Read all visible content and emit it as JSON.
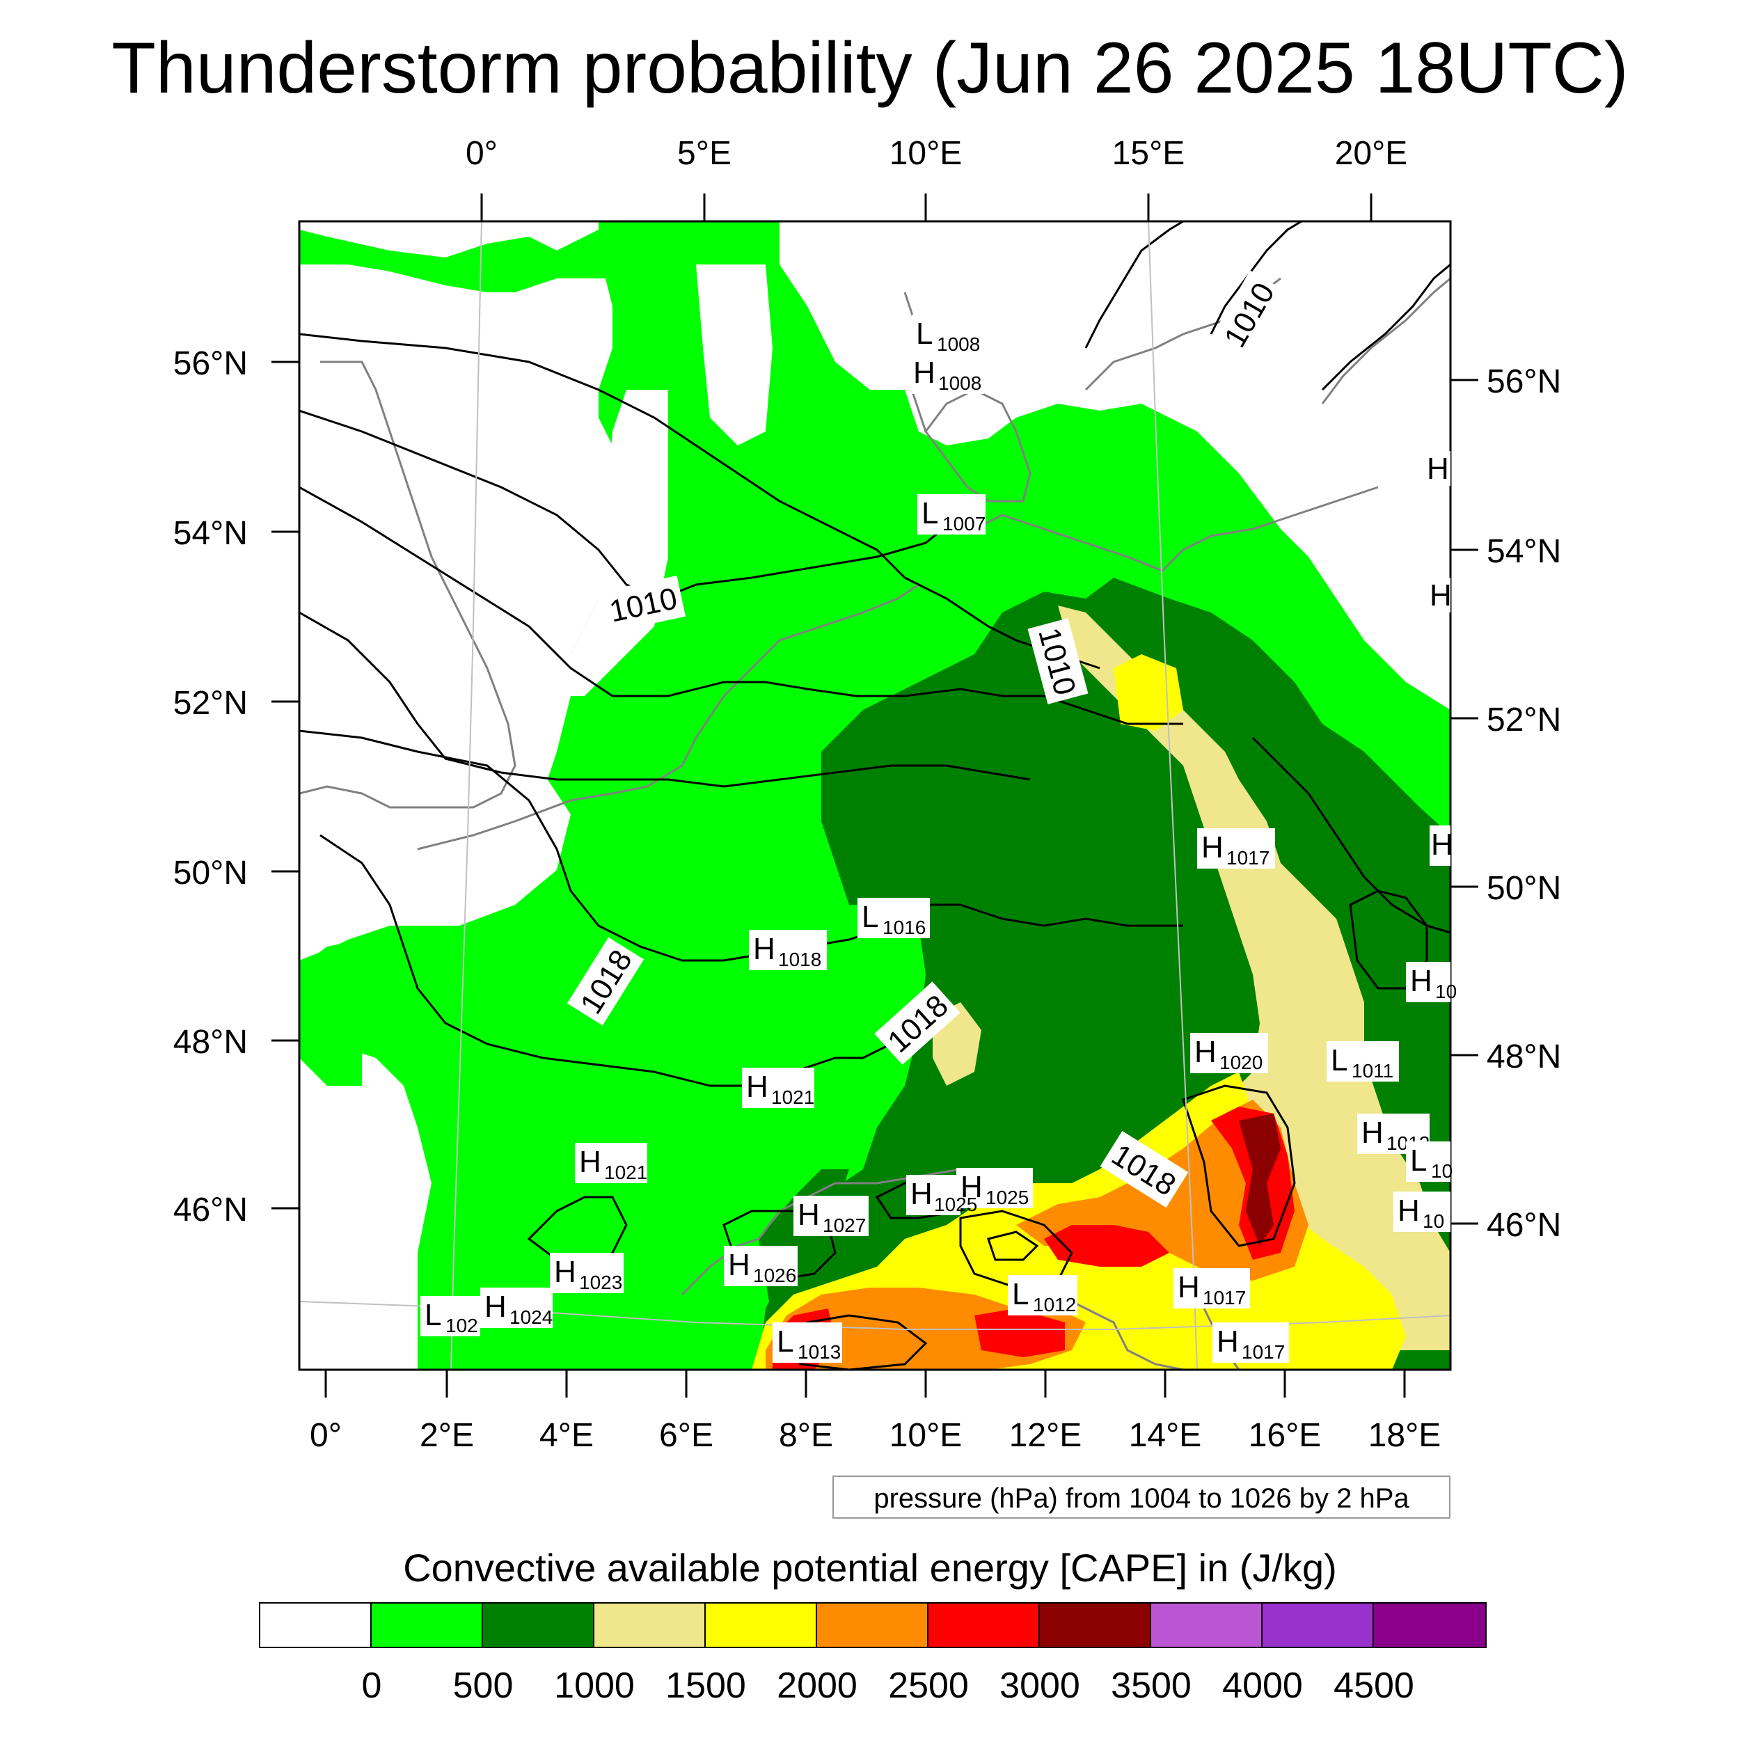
{
  "title": "Thunderstorm probability (Jun 26 2025 18UTC)",
  "axes": {
    "top_lon_labels": [
      "0°",
      "5°E",
      "10°E",
      "15°E",
      "20°E"
    ],
    "bottom_lon_labels": [
      "0°",
      "2°E",
      "4°E",
      "6°E",
      "8°E",
      "10°E",
      "12°E",
      "14°E",
      "16°E",
      "18°E"
    ],
    "left_lat_labels": [
      "56°N",
      "54°N",
      "52°N",
      "50°N",
      "48°N",
      "46°N"
    ],
    "right_lat_labels": [
      "56°N",
      "54°N",
      "52°N",
      "50°N",
      "48°N",
      "46°N"
    ]
  },
  "pressure_note": "pressure (hPa) from 1004 to 1026 by 2 hPa",
  "isobar_labels": [
    "1010",
    "1010",
    "1010",
    "1018",
    "1018",
    "1018"
  ],
  "pressure_centers": [
    {
      "type": "L",
      "value": "1008"
    },
    {
      "type": "H",
      "value": "1008"
    },
    {
      "type": "L",
      "value": "1007"
    },
    {
      "type": "H",
      "value": "1017"
    },
    {
      "type": "L",
      "value": "1016"
    },
    {
      "type": "H",
      "value": "1018"
    },
    {
      "type": "H",
      "value": "1021"
    },
    {
      "type": "H",
      "value": "1021"
    },
    {
      "type": "H",
      "value": "1020"
    },
    {
      "type": "L",
      "value": "1011"
    },
    {
      "type": "H",
      "value": "1012"
    },
    {
      "type": "H",
      "value": "1025"
    },
    {
      "type": "H",
      "value": "1025"
    },
    {
      "type": "H",
      "value": "1027"
    },
    {
      "type": "H",
      "value": "1026"
    },
    {
      "type": "H",
      "value": "1023"
    },
    {
      "type": "H",
      "value": "1024"
    },
    {
      "type": "L",
      "value": "102"
    },
    {
      "type": "L",
      "value": "1013"
    },
    {
      "type": "L",
      "value": "1012"
    },
    {
      "type": "H",
      "value": "1017"
    },
    {
      "type": "H",
      "value": "1017"
    },
    {
      "type": "H",
      "value": ""
    },
    {
      "type": "H",
      "value": ""
    },
    {
      "type": "H",
      "value": ""
    },
    {
      "type": "H",
      "value": "10"
    },
    {
      "type": "L",
      "value": "10"
    },
    {
      "type": "H",
      "value": "10"
    }
  ],
  "legend": {
    "title": "Convective available potential energy [CAPE] in (J/kg)",
    "colors": [
      "#ffffff",
      "#00ff00",
      "#008000",
      "#f0e68c",
      "#ffff00",
      "#ff8c00",
      "#ff0000",
      "#8b0000",
      "#ba55d3",
      "#9932cc",
      "#8b008b"
    ],
    "tick_labels": [
      "0",
      "500",
      "1000",
      "1500",
      "2000",
      "2500",
      "3000",
      "3500",
      "4000",
      "4500"
    ]
  },
  "colors": {
    "cape_0_500": "#00ff00",
    "cape_500_1000": "#008000",
    "cape_1000_1500": "#f0e68c",
    "cape_1500_2000": "#ffff00",
    "cape_2000_2500": "#ff8c00",
    "cape_2500_3000": "#ff0000",
    "cape_3000_3500": "#8b0000",
    "coastline": "#808080",
    "isobar": "#000000"
  }
}
